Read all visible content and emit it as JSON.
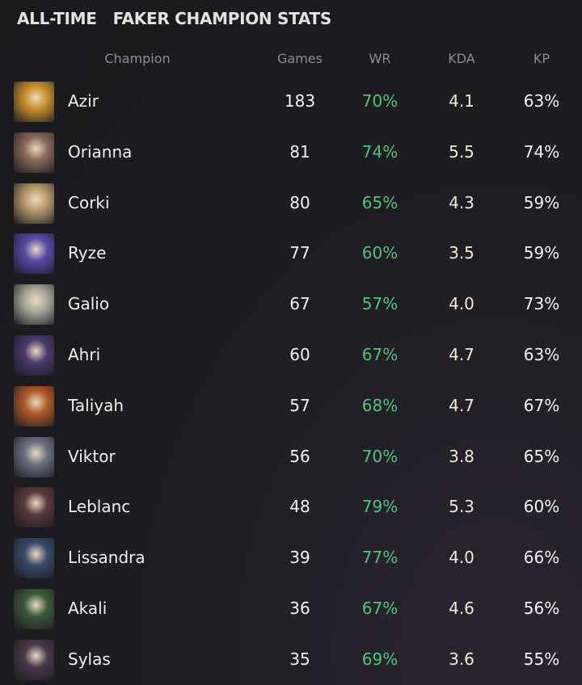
{
  "title": "ALL-TIME   FAKER CHAMPION STATS",
  "headers": {
    "champion": "Champion",
    "games": "Games",
    "wr": "WR",
    "kda": "KDA",
    "kp": "KP"
  },
  "colors": {
    "wr": "#4fc47a",
    "background": "#1d1c21"
  },
  "rows": [
    {
      "champion": "Azir",
      "games": "183",
      "wr": "70%",
      "kda": "4.1",
      "kp": "63%",
      "portrait": "#c8902a"
    },
    {
      "champion": "Orianna",
      "games": "81",
      "wr": "74%",
      "kda": "5.5",
      "kp": "74%",
      "portrait": "#8a6a5a"
    },
    {
      "champion": "Corki",
      "games": "80",
      "wr": "65%",
      "kda": "4.3",
      "kp": "59%",
      "portrait": "#b89a6a"
    },
    {
      "champion": "Ryze",
      "games": "77",
      "wr": "60%",
      "kda": "3.5",
      "kp": "59%",
      "portrait": "#5a4aa8"
    },
    {
      "champion": "Galio",
      "games": "67",
      "wr": "57%",
      "kda": "4.0",
      "kp": "73%",
      "portrait": "#a8a89a"
    },
    {
      "champion": "Ahri",
      "games": "60",
      "wr": "67%",
      "kda": "4.7",
      "kp": "63%",
      "portrait": "#4a3a6a"
    },
    {
      "champion": "Taliyah",
      "games": "57",
      "wr": "68%",
      "kda": "4.7",
      "kp": "67%",
      "portrait": "#b05a2a"
    },
    {
      "champion": "Viktor",
      "games": "56",
      "wr": "70%",
      "kda": "3.8",
      "kp": "65%",
      "portrait": "#6a7080"
    },
    {
      "champion": "Leblanc",
      "games": "48",
      "wr": "79%",
      "kda": "5.3",
      "kp": "60%",
      "portrait": "#5a3a3a"
    },
    {
      "champion": "Lissandra",
      "games": "39",
      "wr": "77%",
      "kda": "4.0",
      "kp": "66%",
      "portrait": "#3a4a6a"
    },
    {
      "champion": "Akali",
      "games": "36",
      "wr": "67%",
      "kda": "4.6",
      "kp": "56%",
      "portrait": "#3a5a3a"
    },
    {
      "champion": "Sylas",
      "games": "35",
      "wr": "69%",
      "kda": "3.6",
      "kp": "55%",
      "portrait": "#4a3a4a"
    }
  ]
}
